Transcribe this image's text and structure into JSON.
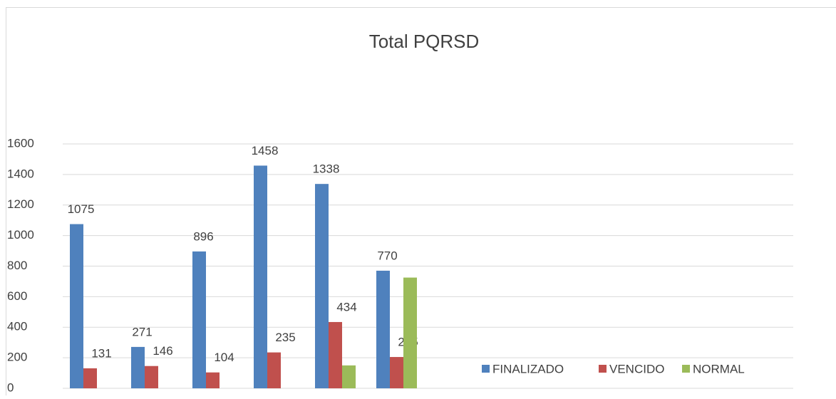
{
  "chart_data": {
    "type": "bar",
    "title": "Total PQRSD",
    "categories": [
      null,
      null,
      null,
      null,
      null,
      null
    ],
    "series": [
      {
        "name": "FINALIZADO",
        "color": "#4f81bd",
        "values": [
          1075,
          271,
          896,
          1458,
          1338,
          770
        ]
      },
      {
        "name": "VENCIDO",
        "color": "#c0504d",
        "values": [
          131,
          146,
          104,
          235,
          434,
          205
        ]
      },
      {
        "name": "NORMAL",
        "color": "#9bbb59",
        "values": [
          null,
          null,
          null,
          null,
          150,
          725
        ]
      }
    ],
    "ylim": [
      0,
      1600
    ],
    "yticks": [
      0,
      200,
      400,
      600,
      800,
      1000,
      1200,
      1400,
      1600
    ],
    "grid": true,
    "legend": "bottom-right"
  }
}
